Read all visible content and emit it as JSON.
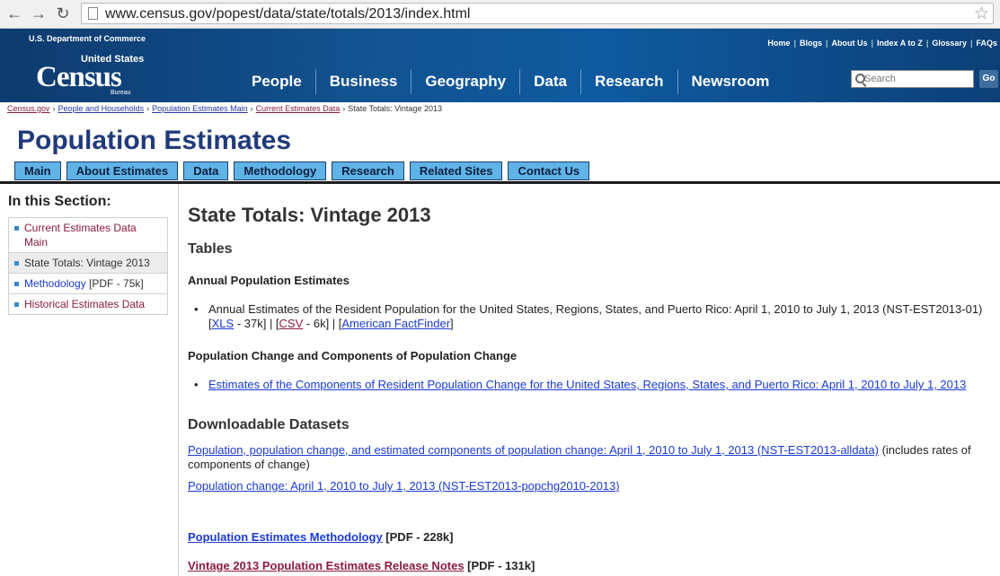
{
  "browser": {
    "url": "www.census.gov/popest/data/state/totals/2013/index.html"
  },
  "header": {
    "dept": "U.S. Department of Commerce",
    "logo_us": "United States",
    "logo_census": "Census",
    "logo_bureau": "Bureau",
    "toplinks": [
      "Home",
      "Blogs",
      "About Us",
      "Index A to Z",
      "Glossary",
      "FAQs"
    ],
    "nav": [
      "People",
      "Business",
      "Geography",
      "Data",
      "Research",
      "Newsroom"
    ],
    "search_placeholder": "Search",
    "search_go": "Go"
  },
  "breadcrumbs": {
    "items": [
      "Census.gov",
      "People and Households",
      "Population Estimates Main",
      "Current Estimates Data"
    ],
    "current": "State Totals: Vintage 2013"
  },
  "page": {
    "title": "Population Estimates",
    "tabs": [
      "Main",
      "About Estimates",
      "Data",
      "Methodology",
      "Research",
      "Related Sites",
      "Contact Us"
    ]
  },
  "sidebar": {
    "heading": "In this Section:",
    "items": [
      {
        "label": "Current Estimates Data Main"
      },
      {
        "label": "State Totals: Vintage 2013"
      },
      {
        "label": "Methodology",
        "suffix": " [PDF - 75k]"
      },
      {
        "label": "Historical Estimates Data"
      }
    ]
  },
  "content": {
    "title": "State Totals: Vintage 2013",
    "tables_heading": "Tables",
    "annual_heading": "Annual Population Estimates",
    "annual_text": "Annual Estimates of the Resident Population for the United States, Regions, States, and Puerto Rico: April 1, 2010 to July 1, 2013 (NST-EST2013-01) ",
    "xls_link": "XLS",
    "xls_size": " - 37k] | [",
    "csv_link": "CSV",
    "csv_size": " - 6k] | [",
    "aff_link": "American FactFinder",
    "change_heading": "Population Change and Components of Population Change",
    "components_link": "Estimates of the Components of Resident Population Change for the United States, Regions, States, and Puerto Rico: April 1, 2010 to July 1, 2013",
    "downloadable_heading": "Downloadable Datasets",
    "dataset1_link": "Population, population change, and estimated components of population change: April 1, 2010 to July 1, 2013 (NST-EST2013-alldata)",
    "dataset1_suffix": " (includes rates of components of change)",
    "dataset2_link": "Population change: April 1, 2010 to July 1, 2013 (NST-EST2013-popchg2010-2013)",
    "methodology_link": "Population Estimates Methodology",
    "methodology_size": " [PDF - 228k]",
    "release_link": "Vintage 2013 Population Estimates Release Notes",
    "release_size": " [PDF - 131k]"
  }
}
